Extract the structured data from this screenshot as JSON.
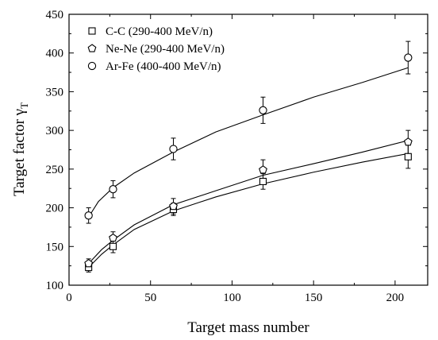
{
  "chart_data": {
    "type": "scatter",
    "title": "",
    "xlabel": "Target mass number",
    "ylabel_main": "Target factor γ",
    "ylabel_sub": "T",
    "xlim": [
      0,
      220
    ],
    "ylim": [
      100,
      450
    ],
    "xticks": [
      0,
      50,
      100,
      150,
      200
    ],
    "yticks": [
      100,
      150,
      200,
      250,
      300,
      350,
      400,
      450
    ],
    "grid": false,
    "legend_position": "top-left",
    "series": [
      {
        "name": "C-C (290-400 MeV/n)",
        "marker": "square",
        "x": [
          12,
          27,
          64,
          119,
          208
        ],
        "y": [
          123,
          150,
          198,
          234,
          266
        ],
        "err": [
          6,
          8,
          8,
          10,
          15
        ],
        "fit": [
          [
            12,
            123
          ],
          [
            20,
            140
          ],
          [
            27,
            152
          ],
          [
            40,
            172
          ],
          [
            64,
            196
          ],
          [
            90,
            214
          ],
          [
            119,
            231
          ],
          [
            150,
            246
          ],
          [
            180,
            259
          ],
          [
            208,
            270
          ]
        ]
      },
      {
        "name": "Ne-Ne (290-400 MeV/n)",
        "marker": "pentagon",
        "x": [
          12,
          27,
          64,
          119,
          208
        ],
        "y": [
          128,
          161,
          202,
          249,
          285
        ],
        "err": [
          6,
          8,
          10,
          13,
          15
        ],
        "fit": [
          [
            12,
            128
          ],
          [
            20,
            146
          ],
          [
            27,
            158
          ],
          [
            40,
            178
          ],
          [
            64,
            204
          ],
          [
            90,
            222
          ],
          [
            119,
            242
          ],
          [
            150,
            257
          ],
          [
            180,
            272
          ],
          [
            208,
            287
          ]
        ]
      },
      {
        "name": "Ar-Fe (400-400 MeV/n)",
        "marker": "circle",
        "x": [
          12,
          27,
          64,
          119,
          208
        ],
        "y": [
          190,
          224,
          276,
          326,
          394
        ],
        "err": [
          10,
          11,
          14,
          17,
          21
        ],
        "fit": [
          [
            12,
            188
          ],
          [
            18,
            208
          ],
          [
            27,
            226
          ],
          [
            40,
            245
          ],
          [
            64,
            272
          ],
          [
            90,
            298
          ],
          [
            119,
            320
          ],
          [
            150,
            343
          ],
          [
            180,
            362
          ],
          [
            208,
            381
          ]
        ]
      }
    ],
    "colors": {
      "marker_fill": "#ffffff",
      "stroke": "#000000"
    }
  }
}
